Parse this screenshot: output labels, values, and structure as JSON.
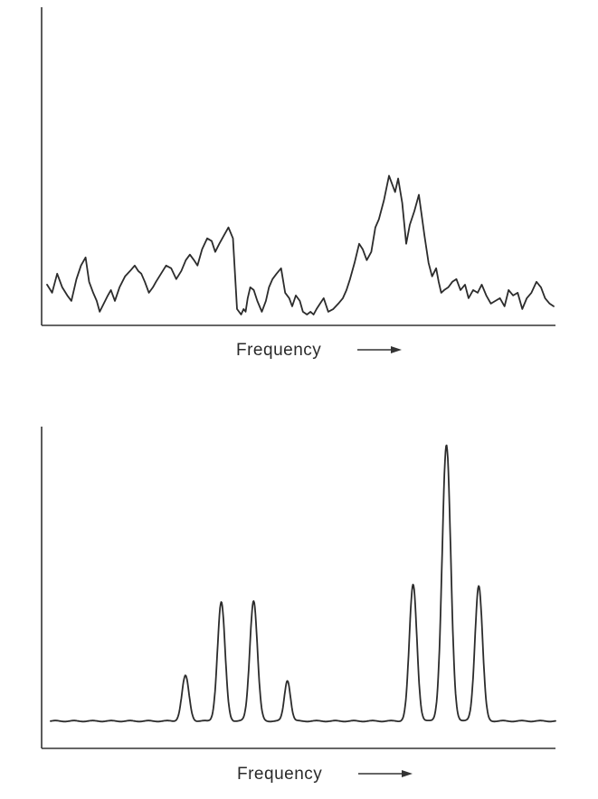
{
  "chart_data": [
    {
      "type": "line",
      "title": "",
      "xlabel": "Frequency",
      "ylabel": "",
      "xlim": [
        0,
        100
      ],
      "ylim": [
        0,
        100
      ],
      "grid": false,
      "x_tick_labels": false,
      "y_tick_labels": false,
      "series": [
        {
          "x": [
            0,
            1,
            2,
            3,
            4,
            4.8,
            5.8,
            6.7,
            7.6,
            8.3,
            9.1,
            9.8,
            10.4,
            11.2,
            12.0,
            12.6,
            13.4,
            14.3,
            15.4,
            16.4,
            17.3,
            18.0,
            18.6,
            19.3,
            20.1,
            20.9,
            21.5,
            22.5,
            23.5,
            24.5,
            25.5,
            26.5,
            27.4,
            28.2,
            29.0,
            29.7,
            30.6,
            31.6,
            32.5,
            33.2,
            34.0,
            34.9,
            35.8,
            36.7,
            37.5,
            38.3,
            38.8,
            39.2,
            39.6,
            40.1,
            40.8,
            41.5,
            42.4,
            43.2,
            43.8,
            44.5,
            45.3,
            46.2,
            47.0,
            47.8,
            48.4,
            49.1,
            49.9,
            50.5,
            51.3,
            52.0,
            52.6,
            53.2,
            53.9,
            54.6,
            55.5,
            56.5,
            57.5,
            58.4,
            59.1,
            59.8,
            60.7,
            61.6,
            62.3,
            63.1,
            64.0,
            64.8,
            65.5,
            66.5,
            67.5,
            68.7,
            69.3,
            70.1,
            70.9,
            71.6,
            72.5,
            73.4,
            74.5,
            75.3,
            76.0,
            76.8,
            77.3,
            77.8,
            78.4,
            79.2,
            80.0,
            80.8,
            81.6,
            82.5,
            83.2,
            84.1,
            85.0,
            85.8,
            86.7,
            87.6,
            88.5,
            89.4,
            90.3,
            91.1,
            92.0,
            92.9,
            93.8,
            94.7,
            95.6,
            96.6,
            97.5,
            98.3,
            99.2,
            100
          ],
          "y": [
            15,
            12,
            19,
            14,
            11,
            9,
            17,
            22,
            25,
            16,
            12,
            9,
            5,
            8,
            11,
            13,
            9,
            14,
            18,
            20,
            22,
            20,
            19,
            16,
            12,
            14,
            16,
            19,
            22,
            21,
            17,
            20,
            24,
            26,
            24,
            22,
            28,
            32,
            31,
            27,
            30,
            33,
            36,
            32,
            6,
            4,
            6,
            5,
            10,
            14,
            13,
            9,
            5,
            9,
            14,
            17,
            19,
            21,
            12,
            10,
            7,
            11,
            9,
            5,
            4,
            5,
            4,
            6,
            8,
            10,
            5,
            6,
            8,
            10,
            13,
            17,
            23,
            30,
            28,
            24,
            27,
            36,
            39,
            46,
            55,
            49,
            54,
            45,
            30,
            37,
            42,
            48,
            33,
            23,
            18,
            21,
            16,
            12,
            13,
            14,
            16,
            17,
            13,
            15,
            10,
            13,
            12,
            15,
            11,
            8,
            9,
            10,
            7,
            13,
            11,
            12,
            6,
            10,
            12,
            16,
            14,
            10,
            8,
            7
          ],
          "values_note_free": true
        }
      ]
    },
    {
      "type": "line",
      "title": "",
      "xlabel": "Frequency",
      "ylabel": "",
      "xlim": [
        0,
        100
      ],
      "ylim": [
        0,
        100
      ],
      "grid": false,
      "x_tick_labels": false,
      "y_tick_labels": false,
      "baseline": 8.4,
      "series": [
        {
          "peaks": [
            {
              "x": 26.7,
              "height": 13.9,
              "width": 0.7
            },
            {
              "x": 33.8,
              "height": 36.5,
              "width": 0.75
            },
            {
              "x": 40.2,
              "height": 37.0,
              "width": 0.75
            },
            {
              "x": 46.9,
              "height": 12.5,
              "width": 0.6
            },
            {
              "x": 71.8,
              "height": 41.9,
              "width": 0.75
            },
            {
              "x": 78.4,
              "height": 84.7,
              "width": 0.85
            },
            {
              "x": 84.8,
              "height": 41.6,
              "width": 0.75
            }
          ]
        }
      ]
    }
  ]
}
